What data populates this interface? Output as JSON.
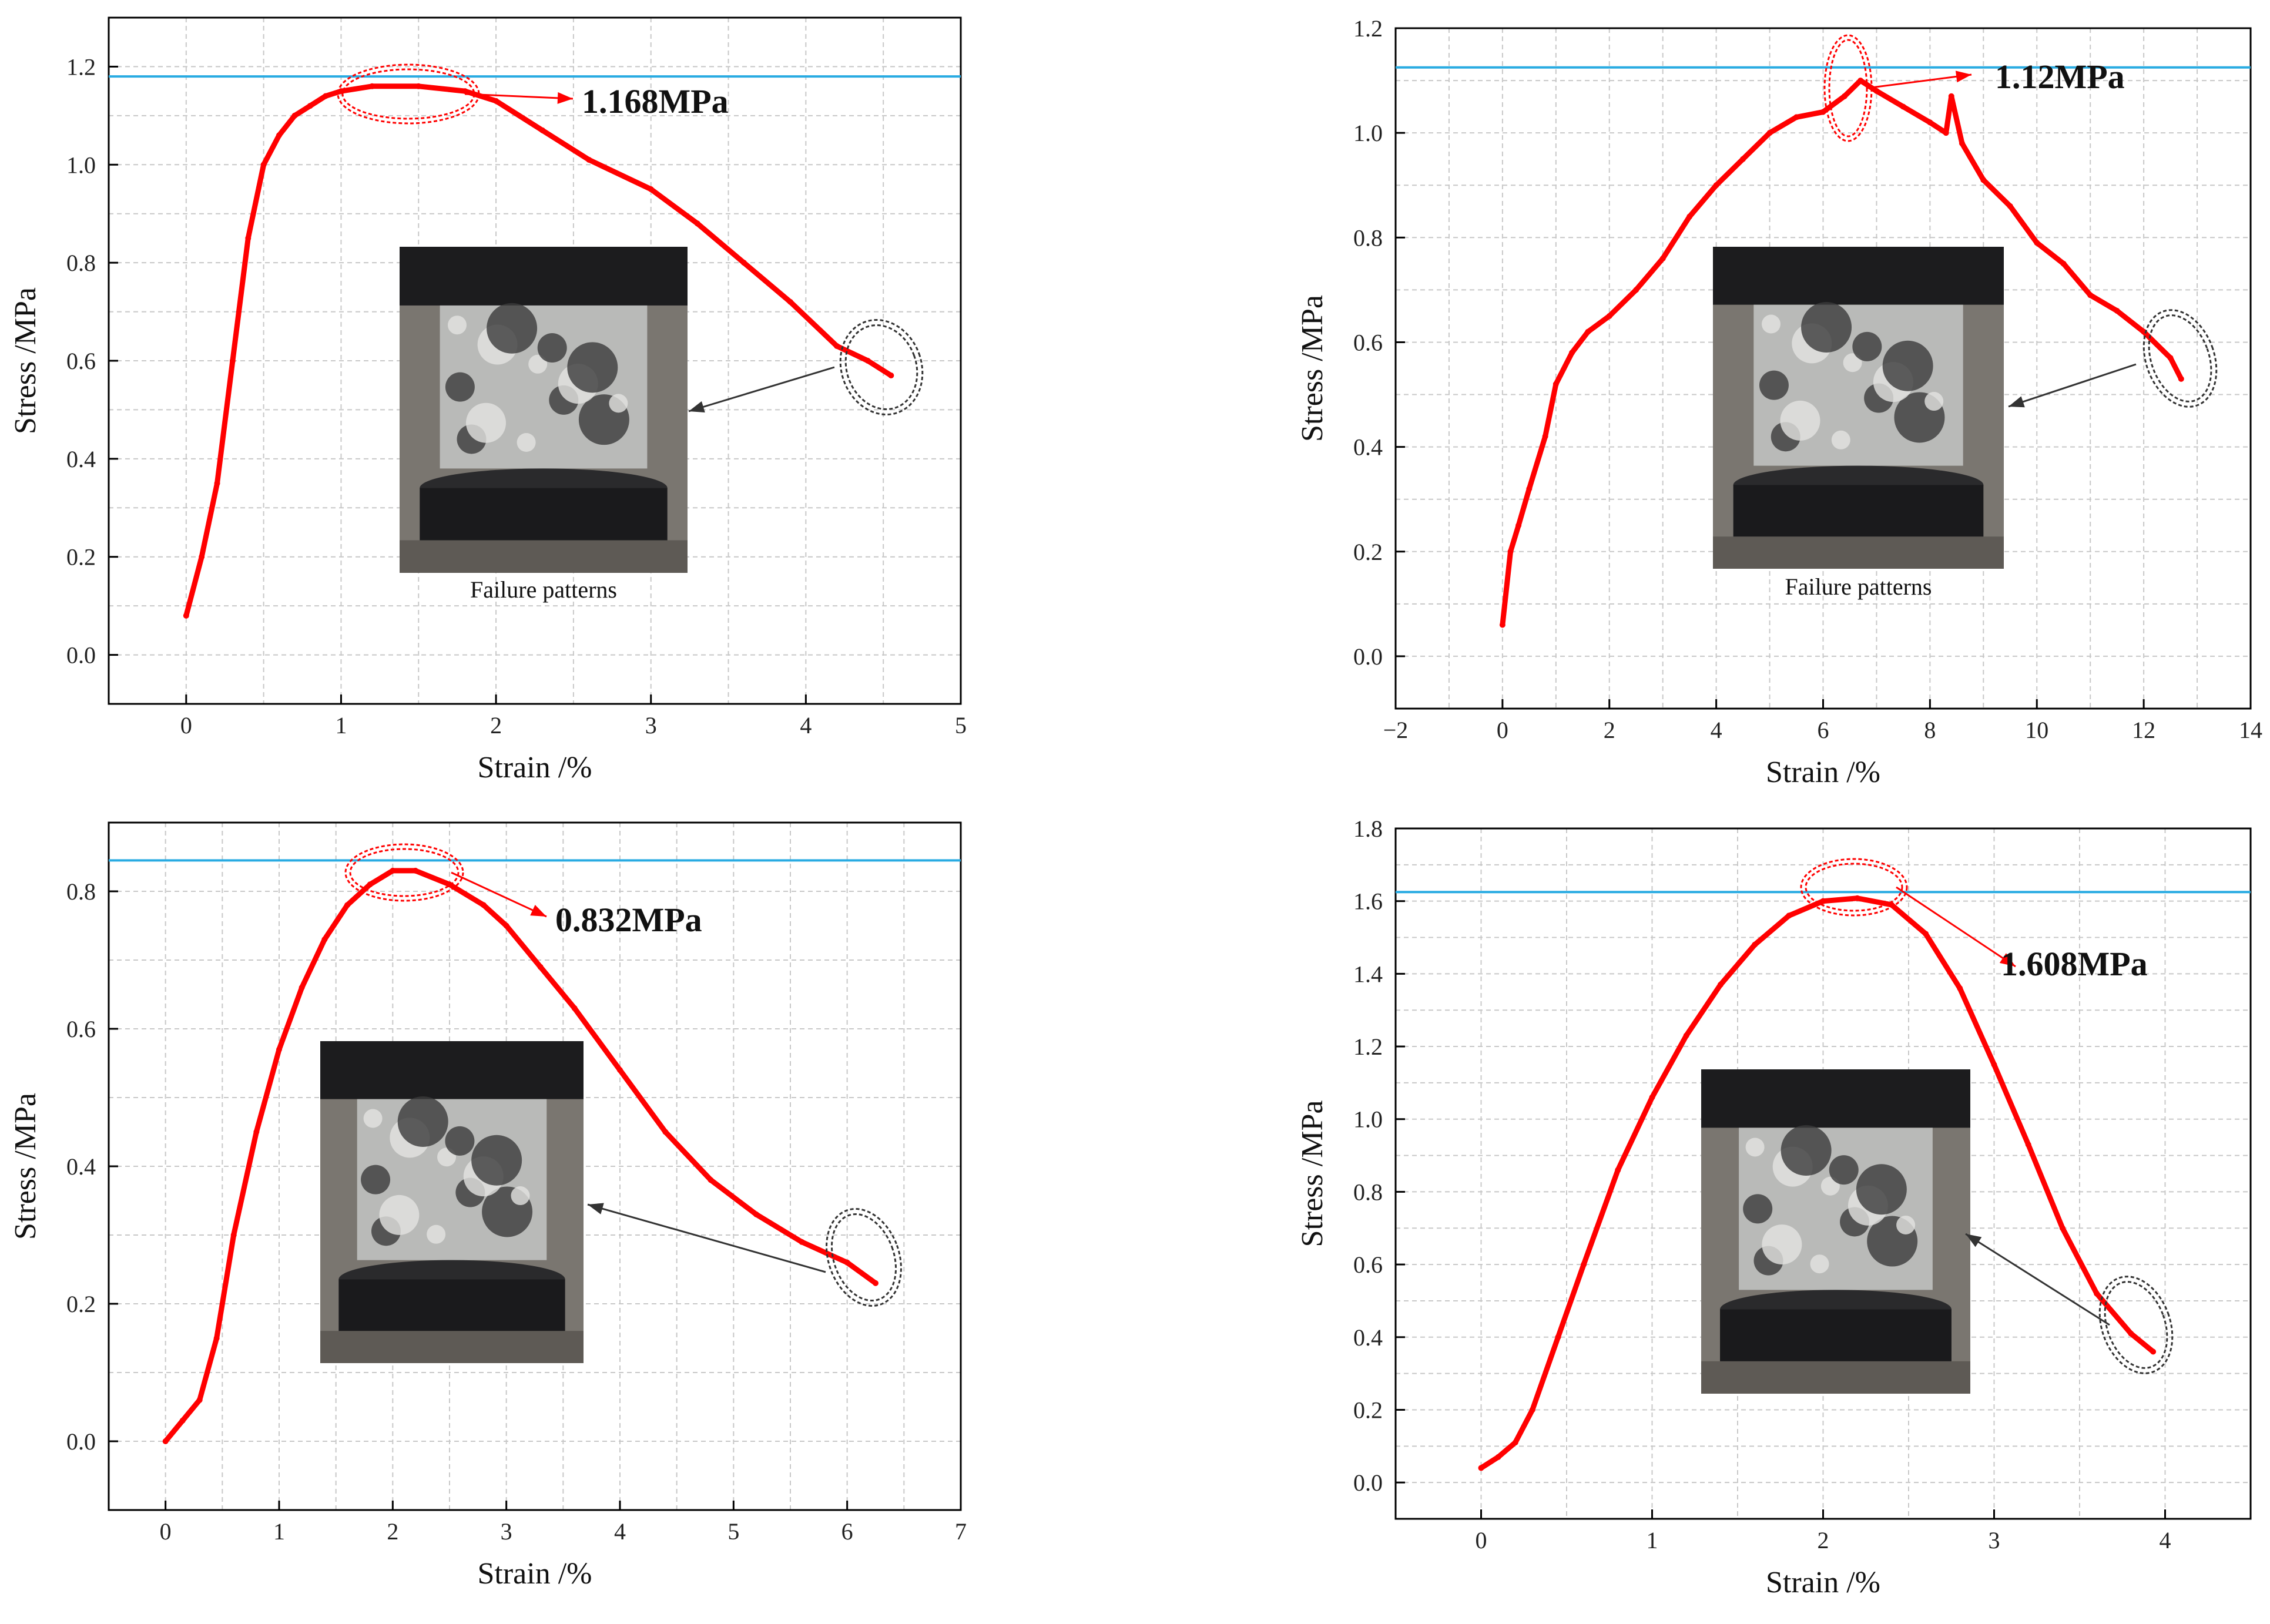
{
  "colors": {
    "curve": "#ff0000",
    "peak_line": "#29abe2",
    "grid": "#c8c8c8",
    "axis": "#000000",
    "black_marker": "#333333"
  },
  "chart_data": [
    {
      "type": "line",
      "xlabel": "Strain /%",
      "ylabel": "Stress /MPa",
      "xlim": [
        -0.5,
        5
      ],
      "ylim": [
        -0.1,
        1.3
      ],
      "xticks": [
        0,
        1,
        2,
        3,
        4,
        5
      ],
      "xtick_labels": [
        "0",
        "1",
        "2",
        "3",
        "4",
        "5"
      ],
      "yticks": [
        0,
        0.2,
        0.4,
        0.6,
        0.8,
        1.0,
        1.2
      ],
      "ytick_labels": [
        "0.0",
        "0.2",
        "0.4",
        "0.6",
        "0.8",
        "1.0",
        "1.2"
      ],
      "grid": true,
      "peak_label": "1.168MPa",
      "peak_stress": 1.168,
      "peak_line_y": 1.18,
      "peak_strain": 1.3,
      "photo_caption": "Failure patterns",
      "series": [
        {
          "x": [
            0,
            0.1,
            0.2,
            0.3,
            0.4,
            0.5,
            0.6,
            0.7,
            0.8,
            0.9,
            1.0,
            1.2,
            1.5,
            1.8,
            2.0,
            2.3,
            2.6,
            3.0,
            3.3,
            3.6,
            3.9,
            4.2,
            4.4,
            4.55
          ],
          "y": [
            0.08,
            0.2,
            0.35,
            0.6,
            0.85,
            1.0,
            1.06,
            1.1,
            1.12,
            1.14,
            1.15,
            1.16,
            1.16,
            1.15,
            1.13,
            1.07,
            1.01,
            0.95,
            0.88,
            0.8,
            0.72,
            0.63,
            0.6,
            0.57
          ]
        }
      ]
    },
    {
      "type": "line",
      "xlabel": "Strain /%",
      "ylabel": "Stress /MPa",
      "xlim": [
        -2,
        14
      ],
      "ylim": [
        -0.1,
        1.2
      ],
      "xticks": [
        -2,
        0,
        2,
        4,
        6,
        8,
        10,
        12,
        14
      ],
      "xtick_labels": [
        "−2",
        "0",
        "2",
        "4",
        "6",
        "8",
        "10",
        "12",
        "14"
      ],
      "yticks": [
        0,
        0.2,
        0.4,
        0.6,
        0.8,
        1.0,
        1.2
      ],
      "ytick_labels": [
        "0.0",
        "0.2",
        "0.4",
        "0.6",
        "0.8",
        "1.0",
        "1.2"
      ],
      "grid": true,
      "peak_label": "1.12MPa",
      "peak_stress": 1.12,
      "peak_line_y": 1.125,
      "peak_strain": 6.7,
      "photo_caption": "Failure patterns",
      "series": [
        {
          "x": [
            0,
            0.15,
            0.3,
            0.5,
            0.8,
            1.0,
            1.3,
            1.6,
            2.0,
            2.5,
            3.0,
            3.5,
            4.0,
            4.5,
            5.0,
            5.5,
            6.0,
            6.4,
            6.7,
            7.0,
            7.5,
            8.0,
            8.3,
            8.4,
            8.6,
            9.0,
            9.5,
            10.0,
            10.5,
            11.0,
            11.5,
            12.0,
            12.5,
            12.7
          ],
          "y": [
            0.06,
            0.2,
            0.25,
            0.32,
            0.42,
            0.52,
            0.58,
            0.62,
            0.65,
            0.7,
            0.76,
            0.84,
            0.9,
            0.95,
            1.0,
            1.03,
            1.04,
            1.07,
            1.1,
            1.08,
            1.05,
            1.02,
            1.0,
            1.07,
            0.98,
            0.91,
            0.86,
            0.79,
            0.75,
            0.69,
            0.66,
            0.62,
            0.57,
            0.53
          ]
        }
      ]
    },
    {
      "type": "line",
      "xlabel": "Strain /%",
      "ylabel": "Stress /MPa",
      "xlim": [
        -0.5,
        7
      ],
      "ylim": [
        -0.1,
        0.9
      ],
      "xticks": [
        0,
        1,
        2,
        3,
        4,
        5,
        6,
        7
      ],
      "xtick_labels": [
        "0",
        "1",
        "2",
        "3",
        "4",
        "5",
        "6",
        "7"
      ],
      "yticks": [
        0,
        0.2,
        0.4,
        0.6,
        0.8
      ],
      "ytick_labels": [
        "0.0",
        "0.2",
        "0.4",
        "0.6",
        "0.8"
      ],
      "grid": true,
      "peak_label": "0.832MPa",
      "peak_stress": 0.832,
      "peak_line_y": 0.845,
      "peak_strain": 2.1,
      "photo_caption": "",
      "series": [
        {
          "x": [
            0,
            0.15,
            0.3,
            0.45,
            0.6,
            0.8,
            1.0,
            1.2,
            1.4,
            1.6,
            1.8,
            2.0,
            2.2,
            2.5,
            2.8,
            3.0,
            3.3,
            3.6,
            4.0,
            4.4,
            4.8,
            5.2,
            5.6,
            6.0,
            6.25
          ],
          "y": [
            0,
            0.03,
            0.06,
            0.15,
            0.3,
            0.45,
            0.57,
            0.66,
            0.73,
            0.78,
            0.81,
            0.83,
            0.83,
            0.81,
            0.78,
            0.75,
            0.69,
            0.63,
            0.54,
            0.45,
            0.38,
            0.33,
            0.29,
            0.26,
            0.23
          ]
        }
      ]
    },
    {
      "type": "line",
      "xlabel": "Strain /%",
      "ylabel": "Stress /MPa",
      "xlim": [
        -0.5,
        4.5
      ],
      "ylim": [
        -0.1,
        1.8
      ],
      "xticks": [
        0,
        1,
        2,
        3,
        4
      ],
      "xtick_labels": [
        "0",
        "1",
        "2",
        "3",
        "4"
      ],
      "yticks": [
        0,
        0.2,
        0.4,
        0.6,
        0.8,
        1.0,
        1.2,
        1.4,
        1.6,
        1.8
      ],
      "ytick_labels": [
        "0.0",
        "0.2",
        "0.4",
        "0.6",
        "0.8",
        "1.0",
        "1.2",
        "1.4",
        "1.6",
        "1.8"
      ],
      "grid": true,
      "peak_label": "1.608MPa",
      "peak_stress": 1.608,
      "peak_line_y": 1.625,
      "peak_strain": 2.2,
      "photo_caption": "",
      "series": [
        {
          "x": [
            0,
            0.1,
            0.2,
            0.3,
            0.45,
            0.6,
            0.8,
            1.0,
            1.2,
            1.4,
            1.6,
            1.8,
            2.0,
            2.2,
            2.4,
            2.6,
            2.8,
            3.0,
            3.2,
            3.4,
            3.6,
            3.8,
            3.93
          ],
          "y": [
            0.04,
            0.07,
            0.11,
            0.2,
            0.4,
            0.6,
            0.86,
            1.06,
            1.23,
            1.37,
            1.48,
            1.56,
            1.6,
            1.608,
            1.59,
            1.51,
            1.36,
            1.15,
            0.93,
            0.7,
            0.52,
            0.41,
            0.36
          ]
        }
      ]
    }
  ]
}
